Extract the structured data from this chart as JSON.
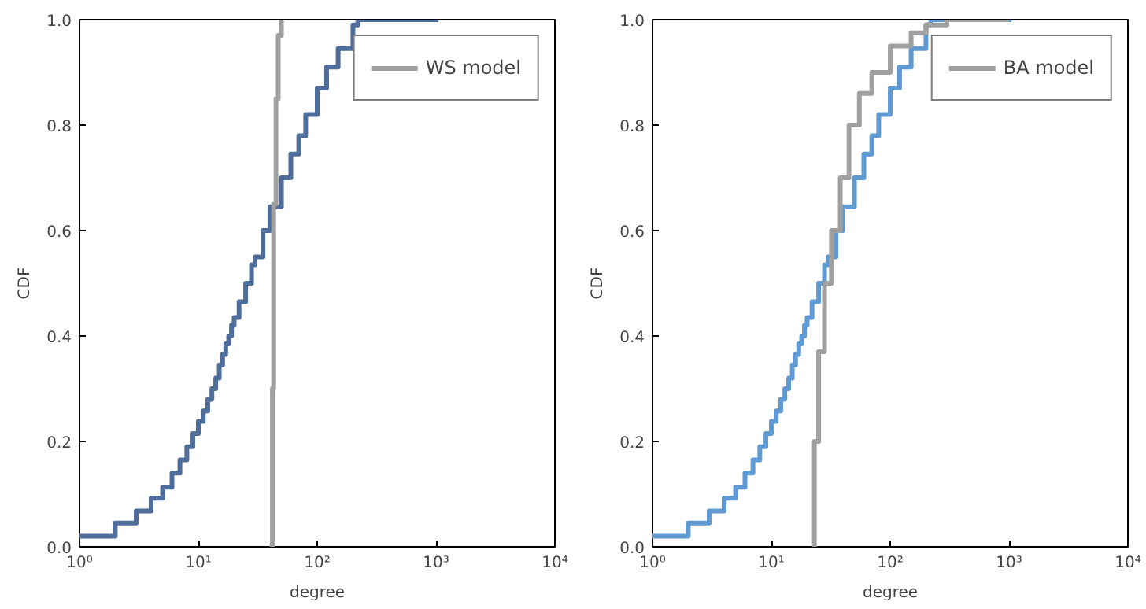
{
  "chart_data": [
    {
      "type": "step",
      "xlabel": "degree",
      "ylabel": "CDF",
      "log": "x",
      "grid": false,
      "legend": "top right",
      "line_style": "solid",
      "xlim": [
        1,
        10000
      ],
      "ylim": [
        0,
        1
      ],
      "xticks": [
        {
          "value": 1,
          "label": "10⁰"
        },
        {
          "value": 10,
          "label": "10¹"
        },
        {
          "value": 100,
          "label": "10²"
        },
        {
          "value": 1000,
          "label": "10³"
        },
        {
          "value": 10000,
          "label": "10⁴"
        }
      ],
      "yticks": [
        {
          "value": 0,
          "label": "0.0"
        },
        {
          "value": 0.2,
          "label": "0.2"
        },
        {
          "value": 0.4,
          "label": "0.4"
        },
        {
          "value": 0.6,
          "label": "0.6"
        },
        {
          "value": 0.8,
          "label": "0.8"
        },
        {
          "value": 1,
          "label": "1.0"
        }
      ],
      "series": [
        {
          "color": "#4f6d9a",
          "x": [
            1,
            2,
            3,
            4,
            5,
            6,
            7,
            8,
            9,
            10,
            11,
            12,
            13,
            14,
            15,
            16,
            17,
            18,
            19,
            20,
            22,
            25,
            28,
            30,
            35,
            40,
            50,
            60,
            70,
            80,
            100,
            120,
            150,
            200,
            220,
            1045
          ],
          "values": [
            0.02,
            0.045,
            0.068,
            0.092,
            0.113,
            0.14,
            0.165,
            0.19,
            0.215,
            0.238,
            0.258,
            0.28,
            0.3,
            0.32,
            0.345,
            0.365,
            0.385,
            0.4,
            0.42,
            0.435,
            0.465,
            0.5,
            0.535,
            0.55,
            0.6,
            0.645,
            0.7,
            0.745,
            0.78,
            0.82,
            0.87,
            0.91,
            0.945,
            0.99,
            1.0,
            1.0
          ]
        },
        {
          "name": "WS model",
          "color": "#a0a0a0",
          "x": [
            40,
            42,
            43,
            45,
            47,
            50,
            51
          ],
          "values": [
            0.0,
            0.3,
            0.65,
            0.85,
            0.97,
            1.0,
            1.0
          ]
        }
      ]
    },
    {
      "type": "step",
      "xlabel": "degree",
      "ylabel": "CDF",
      "log": "x",
      "grid": false,
      "legend": "top right",
      "line_style": "solid",
      "xlim": [
        1,
        10000
      ],
      "ylim": [
        0,
        1
      ],
      "xticks": [
        {
          "value": 1,
          "label": "10⁰"
        },
        {
          "value": 10,
          "label": "10¹"
        },
        {
          "value": 100,
          "label": "10²"
        },
        {
          "value": 1000,
          "label": "10³"
        },
        {
          "value": 10000,
          "label": "10⁴"
        }
      ],
      "yticks": [
        {
          "value": 0,
          "label": "0.0"
        },
        {
          "value": 0.2,
          "label": "0.2"
        },
        {
          "value": 0.4,
          "label": "0.4"
        },
        {
          "value": 0.6,
          "label": "0.6"
        },
        {
          "value": 0.8,
          "label": "0.8"
        },
        {
          "value": 1,
          "label": "1.0"
        }
      ],
      "series": [
        {
          "color": "#5f9bd2",
          "x": [
            1,
            2,
            3,
            4,
            5,
            6,
            7,
            8,
            9,
            10,
            11,
            12,
            13,
            14,
            15,
            16,
            17,
            18,
            19,
            20,
            22,
            25,
            28,
            30,
            35,
            40,
            50,
            60,
            70,
            80,
            100,
            120,
            150,
            200,
            220,
            1045
          ],
          "values": [
            0.02,
            0.045,
            0.068,
            0.092,
            0.113,
            0.14,
            0.165,
            0.19,
            0.215,
            0.238,
            0.258,
            0.28,
            0.3,
            0.32,
            0.345,
            0.365,
            0.385,
            0.4,
            0.42,
            0.435,
            0.465,
            0.5,
            0.535,
            0.55,
            0.6,
            0.645,
            0.7,
            0.745,
            0.78,
            0.82,
            0.87,
            0.91,
            0.945,
            0.99,
            1.0,
            1.0
          ]
        },
        {
          "name": "BA model",
          "color": "#a0a0a0",
          "x": [
            22,
            23,
            25,
            28,
            32,
            38,
            45,
            55,
            70,
            100,
            150,
            200,
            300,
            1000
          ],
          "values": [
            0.0,
            0.2,
            0.37,
            0.5,
            0.6,
            0.7,
            0.8,
            0.86,
            0.9,
            0.95,
            0.975,
            0.99,
            1.0,
            1.0
          ]
        }
      ]
    }
  ]
}
